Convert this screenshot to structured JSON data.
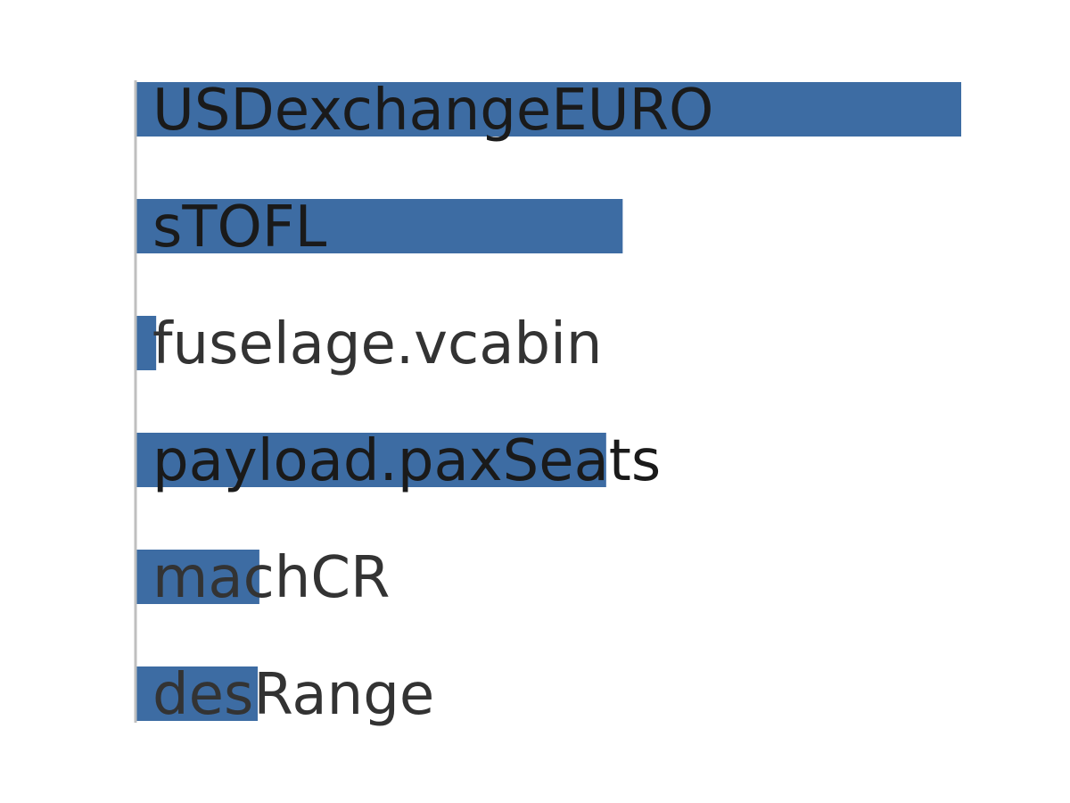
{
  "chart_data": {
    "type": "bar",
    "orientation": "horizontal",
    "categories": [
      "USDexchangeEURO",
      "sTOFL",
      "fuselage.vcabin",
      "payload.paxSeats",
      "machCR",
      "desRange"
    ],
    "values": [
      1.0,
      0.59,
      0.025,
      0.57,
      0.15,
      0.148
    ],
    "xlim": [
      0,
      1.0
    ],
    "title": "",
    "xlabel": "",
    "ylabel": "",
    "grid": false,
    "legend": "none",
    "colors": {
      "bar": "#3d6ca3",
      "label_on_bar": "#1a1a1a",
      "label_off_bar": "#333333",
      "axis": "#bfbfbf"
    }
  }
}
